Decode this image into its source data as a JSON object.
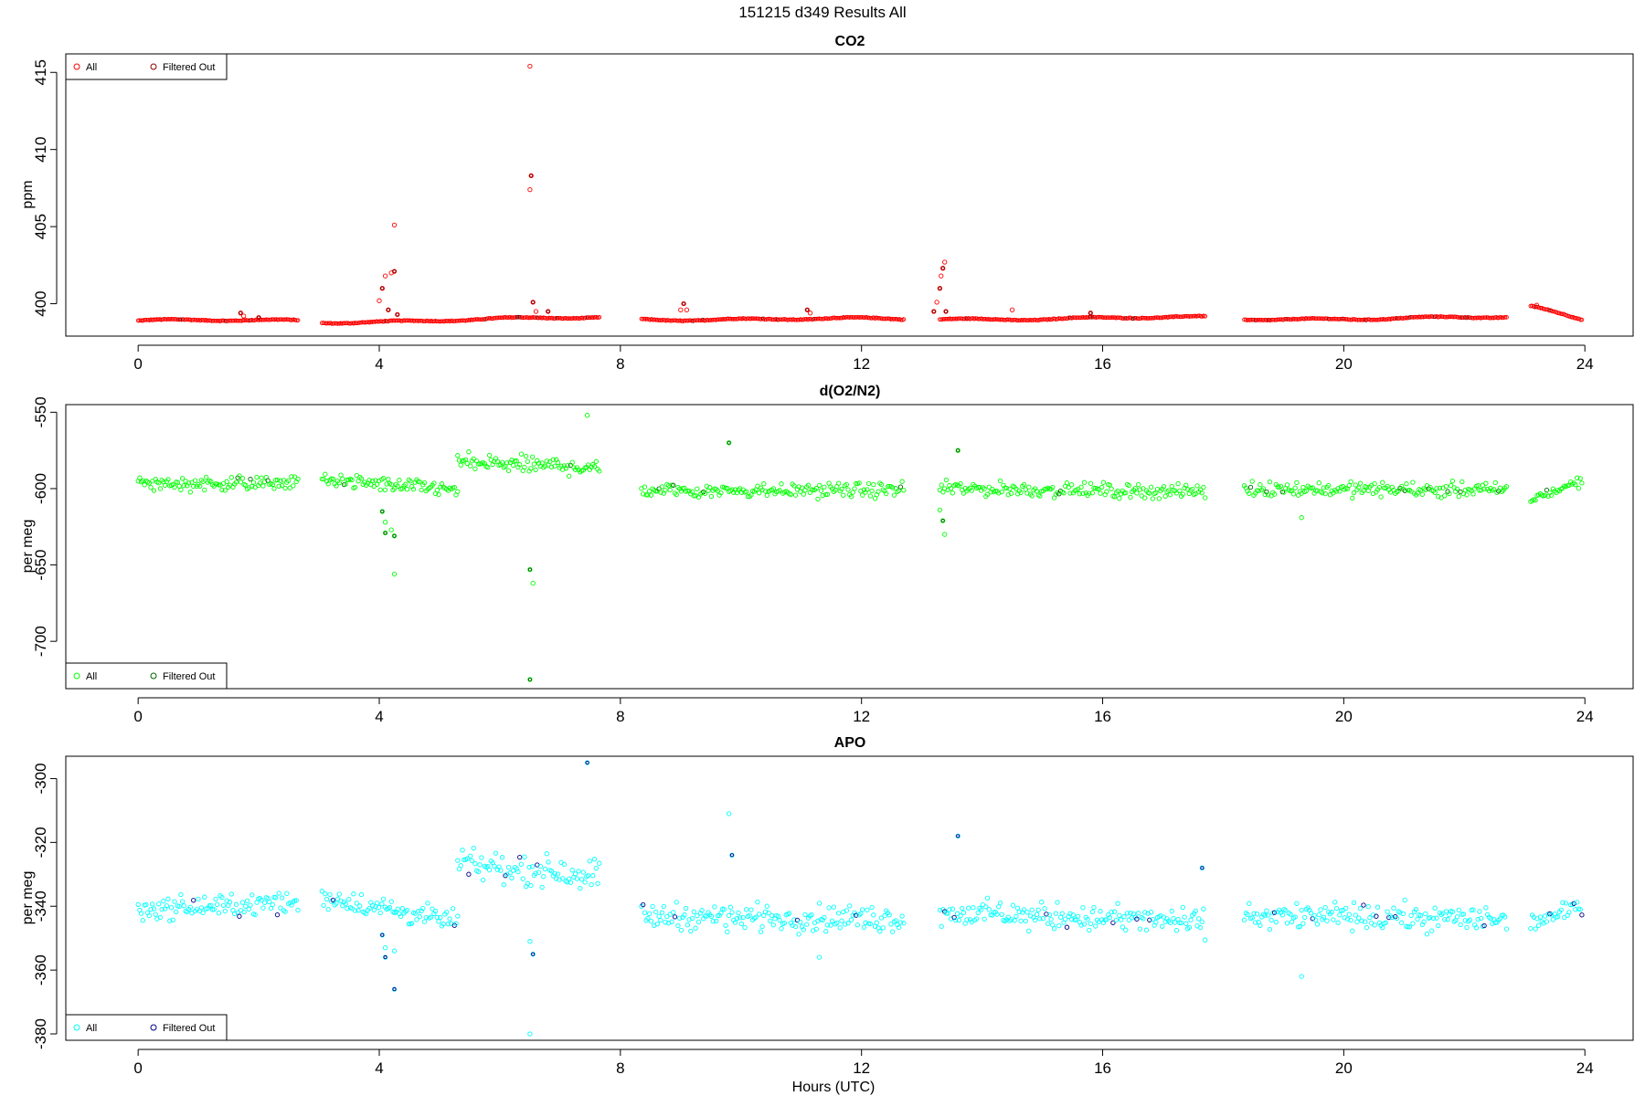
{
  "figure": {
    "title": "151215   d349   Results All",
    "xlabel": "Hours (UTC)"
  },
  "chart_data": [
    {
      "type": "scatter",
      "title": "CO2",
      "ylabel": "ppm",
      "xlim": [
        -1.2,
        24.8
      ],
      "ylim": [
        397.9,
        416.2
      ],
      "xticks": [
        0,
        4,
        8,
        12,
        16,
        20,
        24
      ],
      "yticks": [
        400,
        405,
        410,
        415
      ],
      "colors": {
        "all": "#ff0000",
        "filtered": "#8b0000"
      },
      "legend": {
        "position": "top-left",
        "entries": [
          "All",
          "Filtered Out"
        ]
      },
      "segments": [
        {
          "x": [
            0.0,
            2.65
          ],
          "y": [
            398.9,
            398.9
          ]
        },
        {
          "x": [
            3.05,
            7.65
          ],
          "y": [
            398.8,
            399.1
          ]
        },
        {
          "x": [
            8.35,
            12.7
          ],
          "y": [
            399.0,
            399.0
          ]
        },
        {
          "x": [
            13.3,
            17.7
          ],
          "y": [
            399.0,
            399.1
          ]
        },
        {
          "x": [
            18.35,
            22.7
          ],
          "y": [
            399.0,
            399.1
          ]
        },
        {
          "x": [
            23.1,
            23.95
          ],
          "y": [
            399.8,
            399.0
          ]
        }
      ],
      "outliers": [
        {
          "x": 1.7,
          "y": 399.4
        },
        {
          "x": 1.75,
          "y": 399.2
        },
        {
          "x": 2.0,
          "y": 399.1
        },
        {
          "x": 4.0,
          "y": 400.2
        },
        {
          "x": 4.05,
          "y": 401.0
        },
        {
          "x": 4.1,
          "y": 401.8
        },
        {
          "x": 4.15,
          "y": 399.6
        },
        {
          "x": 4.2,
          "y": 402.0
        },
        {
          "x": 4.25,
          "y": 402.1
        },
        {
          "x": 4.25,
          "y": 405.1
        },
        {
          "x": 4.3,
          "y": 399.3
        },
        {
          "x": 6.5,
          "y": 415.4
        },
        {
          "x": 6.52,
          "y": 408.3
        },
        {
          "x": 6.5,
          "y": 407.4
        },
        {
          "x": 6.55,
          "y": 400.1
        },
        {
          "x": 6.6,
          "y": 399.5
        },
        {
          "x": 6.8,
          "y": 399.5
        },
        {
          "x": 9.0,
          "y": 399.6
        },
        {
          "x": 9.05,
          "y": 400.0
        },
        {
          "x": 9.1,
          "y": 399.6
        },
        {
          "x": 11.1,
          "y": 399.6
        },
        {
          "x": 11.15,
          "y": 399.4
        },
        {
          "x": 13.2,
          "y": 399.5
        },
        {
          "x": 13.25,
          "y": 400.1
        },
        {
          "x": 13.3,
          "y": 401.0
        },
        {
          "x": 13.32,
          "y": 401.8
        },
        {
          "x": 13.35,
          "y": 402.3
        },
        {
          "x": 13.38,
          "y": 402.7
        },
        {
          "x": 13.4,
          "y": 399.5
        },
        {
          "x": 14.5,
          "y": 399.6
        },
        {
          "x": 15.8,
          "y": 399.4
        },
        {
          "x": 23.2,
          "y": 399.9
        }
      ]
    },
    {
      "type": "scatter",
      "title": "d(O2/N2)",
      "ylabel": "per meg",
      "xlim": [
        -1.2,
        24.8
      ],
      "ylim": [
        -731,
        -545
      ],
      "xticks": [
        0,
        4,
        8,
        12,
        16,
        20,
        24
      ],
      "yticks": [
        -550,
        -600,
        -650,
        -700
      ],
      "colors": {
        "all": "#00ff00",
        "filtered": "#006400"
      },
      "legend": {
        "position": "bottom-left",
        "entries": [
          "All",
          "Filtered Out"
        ]
      },
      "segments": [
        {
          "x": [
            0.0,
            2.65
          ],
          "y": [
            -597,
            -596
          ],
          "noise": 4
        },
        {
          "x": [
            3.05,
            5.3
          ],
          "y": [
            -594,
            -601
          ],
          "noise": 4
        },
        {
          "x": [
            5.3,
            7.65
          ],
          "y": [
            -583,
            -586
          ],
          "noise": 5
        },
        {
          "x": [
            8.35,
            12.7
          ],
          "y": [
            -601,
            -601
          ],
          "noise": 4
        },
        {
          "x": [
            13.3,
            17.7
          ],
          "y": [
            -600,
            -602
          ],
          "noise": 4
        },
        {
          "x": [
            18.35,
            22.7
          ],
          "y": [
            -600,
            -601
          ],
          "noise": 4
        },
        {
          "x": [
            23.1,
            23.95
          ],
          "y": [
            -607,
            -595
          ],
          "noise": 3
        }
      ],
      "outliers": [
        {
          "x": 4.05,
          "y": -615
        },
        {
          "x": 4.1,
          "y": -622
        },
        {
          "x": 4.1,
          "y": -629
        },
        {
          "x": 4.2,
          "y": -627
        },
        {
          "x": 4.25,
          "y": -631
        },
        {
          "x": 4.25,
          "y": -656
        },
        {
          "x": 6.5,
          "y": -653
        },
        {
          "x": 6.55,
          "y": -662
        },
        {
          "x": 6.5,
          "y": -725
        },
        {
          "x": 7.45,
          "y": -552
        },
        {
          "x": 9.8,
          "y": -570
        },
        {
          "x": 13.3,
          "y": -614
        },
        {
          "x": 13.35,
          "y": -621
        },
        {
          "x": 13.38,
          "y": -630
        },
        {
          "x": 13.6,
          "y": -575
        },
        {
          "x": 19.3,
          "y": -619
        }
      ]
    },
    {
      "type": "scatter",
      "title": "APO",
      "ylabel": "per meg",
      "xlim": [
        -1.2,
        24.8
      ],
      "ylim": [
        -382,
        -293
      ],
      "xticks": [
        0,
        4,
        8,
        12,
        16,
        20,
        24
      ],
      "yticks": [
        -300,
        -320,
        -340,
        -360,
        -380
      ],
      "colors": {
        "all": "#00ffff",
        "filtered": "#00008b"
      },
      "legend": {
        "position": "bottom-left",
        "entries": [
          "All",
          "Filtered Out"
        ]
      },
      "segments": [
        {
          "x": [
            0.0,
            2.65
          ],
          "y": [
            -341,
            -339
          ],
          "noise": 3
        },
        {
          "x": [
            3.05,
            5.3
          ],
          "y": [
            -337,
            -345
          ],
          "noise": 3
        },
        {
          "x": [
            5.3,
            7.65
          ],
          "y": [
            -327,
            -330
          ],
          "noise": 4
        },
        {
          "x": [
            8.35,
            12.7
          ],
          "y": [
            -343,
            -344
          ],
          "noise": 3.5
        },
        {
          "x": [
            13.3,
            17.7
          ],
          "y": [
            -342,
            -345
          ],
          "noise": 3.5
        },
        {
          "x": [
            18.35,
            22.7
          ],
          "y": [
            -343,
            -344
          ],
          "noise": 3.5
        },
        {
          "x": [
            23.1,
            23.95
          ],
          "y": [
            -345,
            -340
          ],
          "noise": 2.5
        }
      ],
      "outliers": [
        {
          "x": 4.05,
          "y": -349
        },
        {
          "x": 4.1,
          "y": -353
        },
        {
          "x": 4.1,
          "y": -356
        },
        {
          "x": 4.25,
          "y": -354
        },
        {
          "x": 4.25,
          "y": -366
        },
        {
          "x": 6.5,
          "y": -351
        },
        {
          "x": 6.55,
          "y": -355
        },
        {
          "x": 6.5,
          "y": -380
        },
        {
          "x": 7.45,
          "y": -295
        },
        {
          "x": 9.8,
          "y": -311
        },
        {
          "x": 9.85,
          "y": -324
        },
        {
          "x": 11.3,
          "y": -356
        },
        {
          "x": 13.6,
          "y": -318
        },
        {
          "x": 19.3,
          "y": -362
        },
        {
          "x": 17.65,
          "y": -328
        }
      ]
    }
  ]
}
